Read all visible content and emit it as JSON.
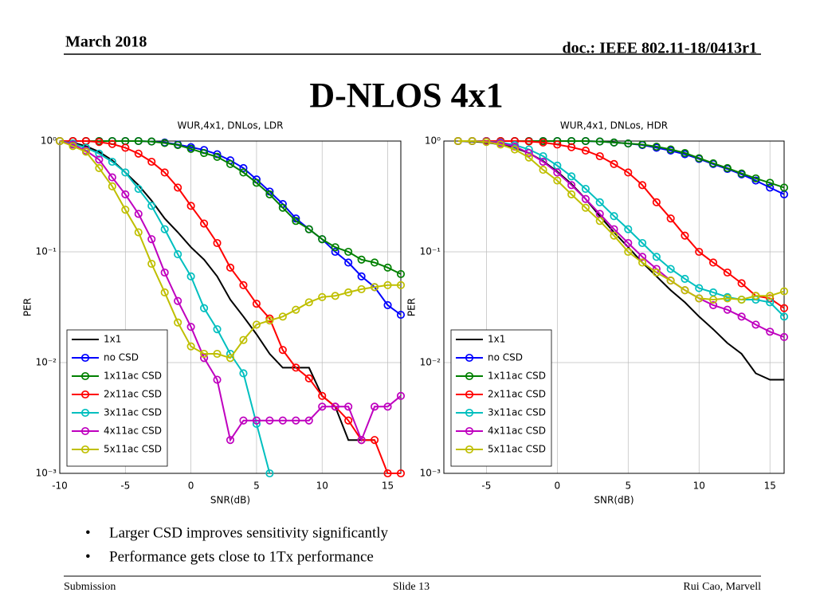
{
  "header": {
    "date": "March 2018",
    "doc": "doc.: IEEE 802.11-18/0413r1"
  },
  "title": "D-NLOS 4x1",
  "chart_data": [
    {
      "type": "line",
      "title": "WUR,4x1, DNLos, LDR",
      "x_label": "SNR(dB)",
      "y_label": "PER",
      "log_y": true,
      "grid": true,
      "legend": "lower left",
      "x": [
        -10,
        -9,
        -8,
        -7,
        -6,
        -5,
        -4,
        -3,
        -2,
        -1,
        0,
        1,
        2,
        3,
        4,
        5,
        6,
        7,
        8,
        9,
        10,
        11,
        12,
        13,
        14,
        15,
        16
      ],
      "xlim": [
        -10,
        16
      ],
      "xticks": [
        -10,
        -5,
        0,
        5,
        10,
        15
      ],
      "ylim": [
        0.001,
        1
      ],
      "yticks": [
        {
          "value": 0.001,
          "label": "10⁻³"
        },
        {
          "value": 0.01,
          "label": "10⁻²"
        },
        {
          "value": 0.1,
          "label": "10⁻¹"
        },
        {
          "value": 1,
          "label": "10⁰"
        }
      ],
      "series": [
        {
          "name": "1x1",
          "color": "#000000",
          "marker": "none",
          "values": [
            1,
            0.97,
            0.9,
            0.8,
            0.67,
            0.52,
            0.4,
            0.29,
            0.2,
            0.15,
            0.11,
            0.085,
            0.06,
            0.037,
            0.026,
            0.018,
            0.012,
            0.009,
            0.009,
            0.009,
            0.005,
            0.004,
            0.002,
            0.002,
            0.002,
            null,
            null
          ]
        },
        {
          "name": "no CSD",
          "color": "#0000ff",
          "marker": "o",
          "values": [
            1,
            1,
            1,
            1,
            1,
            1,
            1,
            0.99,
            0.97,
            0.93,
            0.88,
            0.83,
            0.76,
            0.67,
            0.57,
            0.45,
            0.35,
            0.27,
            0.2,
            0.16,
            0.13,
            0.1,
            0.08,
            0.06,
            0.048,
            0.033,
            0.027
          ]
        },
        {
          "name": "1x11ac CSD",
          "color": "#008000",
          "marker": "o",
          "values": [
            1,
            1,
            1,
            1,
            1,
            1,
            1,
            0.99,
            0.96,
            0.92,
            0.85,
            0.78,
            0.72,
            0.62,
            0.52,
            0.42,
            0.33,
            0.25,
            0.19,
            0.16,
            0.13,
            0.11,
            0.1,
            0.085,
            0.08,
            0.072,
            0.063
          ]
        },
        {
          "name": "2x11ac CSD",
          "color": "#ff0000",
          "marker": "o",
          "values": [
            1,
            1,
            1,
            0.98,
            0.94,
            0.87,
            0.77,
            0.65,
            0.52,
            0.38,
            0.26,
            0.18,
            0.12,
            0.072,
            0.05,
            0.034,
            0.025,
            0.013,
            0.009,
            0.0072,
            0.005,
            0.004,
            0.003,
            0.002,
            0.002,
            0.001,
            0.001
          ]
        },
        {
          "name": "3x11ac CSD",
          "color": "#00bfbf",
          "marker": "o",
          "values": [
            1,
            0.95,
            0.87,
            0.77,
            0.65,
            0.52,
            0.37,
            0.26,
            0.16,
            0.095,
            0.06,
            0.031,
            0.02,
            0.012,
            0.008,
            0.0028,
            0.001,
            null,
            null,
            null,
            null,
            null,
            null,
            null,
            null,
            null,
            null
          ]
        },
        {
          "name": "4x11ac CSD",
          "color": "#bf00bf",
          "marker": "o",
          "values": [
            1,
            0.93,
            0.82,
            0.68,
            0.47,
            0.33,
            0.22,
            0.13,
            0.065,
            0.036,
            0.021,
            0.011,
            0.007,
            0.002,
            0.003,
            0.003,
            0.003,
            0.003,
            0.003,
            0.003,
            0.004,
            0.004,
            0.004,
            0.002,
            0.004,
            0.004,
            0.005
          ]
        },
        {
          "name": "5x11ac CSD",
          "color": "#bfbf00",
          "marker": "o",
          "values": [
            1,
            0.9,
            0.8,
            0.57,
            0.39,
            0.24,
            0.15,
            0.078,
            0.043,
            0.023,
            0.014,
            0.012,
            0.012,
            0.011,
            0.016,
            0.022,
            0.024,
            0.026,
            0.03,
            0.035,
            0.039,
            0.04,
            0.043,
            0.046,
            0.048,
            0.05,
            0.05
          ]
        }
      ]
    },
    {
      "type": "line",
      "title": "WUR,4x1, DNLos, HDR",
      "x_label": "SNR(dB)",
      "y_label": "PER",
      "log_y": true,
      "grid": true,
      "legend": "lower left",
      "x": [
        -7,
        -6,
        -5,
        -4,
        -3,
        -2,
        -1,
        0,
        1,
        2,
        3,
        4,
        5,
        6,
        7,
        8,
        9,
        10,
        11,
        12,
        13,
        14,
        15,
        16
      ],
      "xlim": [
        -8,
        16
      ],
      "xticks": [
        -5,
        0,
        5,
        10,
        15
      ],
      "ylim": [
        0.001,
        1
      ],
      "yticks": [
        {
          "value": 0.001,
          "label": "10⁻³"
        },
        {
          "value": 0.01,
          "label": "10⁻²"
        },
        {
          "value": 0.1,
          "label": "10⁻¹"
        },
        {
          "value": 1,
          "label": "10⁰"
        }
      ],
      "series": [
        {
          "name": "1x1",
          "color": "#000000",
          "marker": "none",
          "values": [
            1,
            0.99,
            0.97,
            0.93,
            0.87,
            0.78,
            0.66,
            0.53,
            0.41,
            0.3,
            0.21,
            0.15,
            0.11,
            0.08,
            0.06,
            0.045,
            0.035,
            0.026,
            0.02,
            0.015,
            0.012,
            0.008,
            0.007,
            0.007
          ]
        },
        {
          "name": "no CSD",
          "color": "#0000ff",
          "marker": "o",
          "values": [
            1,
            1,
            1,
            1,
            1,
            1,
            1,
            1,
            1,
            1,
            0.99,
            0.97,
            0.95,
            0.92,
            0.87,
            0.82,
            0.76,
            0.69,
            0.62,
            0.56,
            0.5,
            0.44,
            0.38,
            0.33
          ]
        },
        {
          "name": "1x11ac CSD",
          "color": "#008000",
          "marker": "o",
          "values": [
            1,
            1,
            1,
            1,
            1,
            1,
            1,
            1,
            1,
            1,
            0.99,
            0.97,
            0.95,
            0.93,
            0.89,
            0.84,
            0.78,
            0.7,
            0.63,
            0.57,
            0.51,
            0.46,
            0.42,
            0.38
          ]
        },
        {
          "name": "2x11ac CSD",
          "color": "#ff0000",
          "marker": "o",
          "values": [
            1,
            1,
            1,
            1,
            1,
            0.99,
            0.97,
            0.93,
            0.88,
            0.82,
            0.73,
            0.62,
            0.52,
            0.4,
            0.28,
            0.2,
            0.14,
            0.1,
            0.08,
            0.065,
            0.052,
            0.04,
            0.038,
            0.031
          ]
        },
        {
          "name": "3x11ac CSD",
          "color": "#00bfbf",
          "marker": "o",
          "values": [
            1,
            1,
            0.99,
            0.97,
            0.92,
            0.84,
            0.73,
            0.6,
            0.48,
            0.37,
            0.28,
            0.21,
            0.16,
            0.12,
            0.09,
            0.07,
            0.057,
            0.047,
            0.043,
            0.039,
            0.037,
            0.037,
            0.035,
            0.026
          ]
        },
        {
          "name": "4x11ac CSD",
          "color": "#bf00bf",
          "marker": "o",
          "values": [
            1,
            1,
            0.99,
            0.96,
            0.89,
            0.78,
            0.65,
            0.52,
            0.4,
            0.3,
            0.22,
            0.16,
            0.12,
            0.09,
            0.07,
            0.055,
            0.045,
            0.038,
            0.033,
            0.03,
            0.026,
            0.022,
            0.019,
            0.017
          ]
        },
        {
          "name": "5x11ac CSD",
          "color": "#bfbf00",
          "marker": "o",
          "values": [
            1,
            1,
            0.98,
            0.93,
            0.84,
            0.71,
            0.55,
            0.44,
            0.33,
            0.25,
            0.19,
            0.14,
            0.1,
            0.08,
            0.065,
            0.055,
            0.045,
            0.038,
            0.037,
            0.038,
            0.037,
            0.04,
            0.04,
            0.044
          ]
        }
      ]
    }
  ],
  "bullets": [
    "Larger CSD improves sensitivity significantly",
    "Performance gets close to 1Tx performance"
  ],
  "footer": {
    "left": "Submission",
    "center": "Slide 13",
    "right": "Rui Cao, Marvell"
  }
}
